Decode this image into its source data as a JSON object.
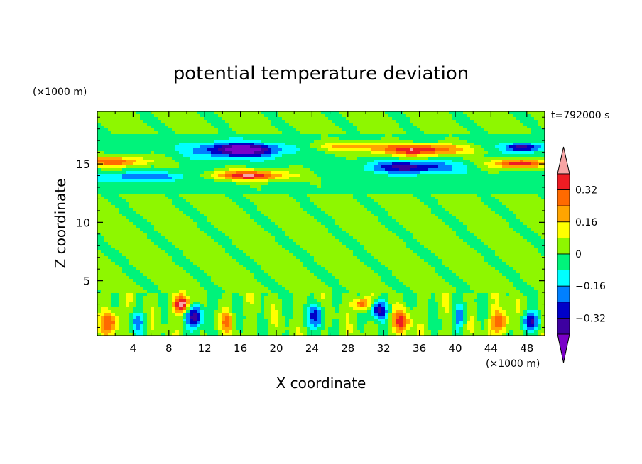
{
  "chart_data": {
    "type": "heatmap",
    "title": "potential temperature deviation",
    "xlabel": "X coordinate",
    "ylabel": "Z coordinate",
    "x_unit": "(×1000 m)",
    "y_unit": "(×1000 m)",
    "time_label": "t=792000 s",
    "xlim": [
      0,
      50
    ],
    "ylim": [
      0.3,
      19.5
    ],
    "x_ticks": [
      "4",
      "8",
      "12",
      "16",
      "20",
      "24",
      "28",
      "32",
      "36",
      "40",
      "44",
      "48"
    ],
    "y_ticks": [
      "5",
      "10",
      "15"
    ],
    "colorbar": {
      "labels": [
        "0.32",
        "0.16",
        "0",
        "−0.16",
        "−0.32"
      ],
      "levels": [
        0.4,
        0.32,
        0.24,
        0.16,
        0.08,
        0,
        -0.08,
        -0.16,
        -0.24,
        -0.32,
        -0.4
      ],
      "colors": [
        "#f7a4a4",
        "#ee1c23",
        "#ff6a00",
        "#ffa500",
        "#ffff00",
        "#8ef700",
        "#00f37b",
        "#00ffff",
        "#0080ff",
        "#0000c8",
        "#3d00a0",
        "#7a00c8"
      ]
    },
    "features": [
      {
        "x": 16,
        "z": 16.2,
        "sx": 4.5,
        "sz": 0.6,
        "v": -0.45
      },
      {
        "x": 35,
        "z": 14.7,
        "sx": 4.5,
        "sz": 0.5,
        "v": -0.33
      },
      {
        "x": 47.5,
        "z": 16.4,
        "sx": 2,
        "sz": 0.4,
        "v": -0.35
      },
      {
        "x": 5,
        "z": 13.9,
        "sx": 6,
        "sz": 0.4,
        "v": -0.2
      },
      {
        "x": 17,
        "z": 14,
        "sx": 4.5,
        "sz": 0.45,
        "v": 0.42
      },
      {
        "x": 36,
        "z": 16.2,
        "sx": 5,
        "sz": 0.5,
        "v": 0.42
      },
      {
        "x": 2,
        "z": 15.2,
        "sx": 4,
        "sz": 0.45,
        "v": 0.33
      },
      {
        "x": 47,
        "z": 15,
        "sx": 3,
        "sz": 0.4,
        "v": 0.42
      },
      {
        "x": 28,
        "z": 16.5,
        "sx": 4,
        "sz": 0.45,
        "v": 0.2
      },
      {
        "x": 9.5,
        "z": 3,
        "sx": 0.9,
        "sz": 0.7,
        "v": 0.45
      },
      {
        "x": 29.5,
        "z": 3,
        "sx": 0.9,
        "sz": 0.5,
        "v": 0.35
      },
      {
        "x": 1.5,
        "z": 1.5,
        "sx": 1,
        "sz": 1,
        "v": 0.3
      },
      {
        "x": 34,
        "z": 1.5,
        "sx": 1,
        "sz": 1,
        "v": 0.3
      },
      {
        "x": 45,
        "z": 1.5,
        "sx": 1,
        "sz": 1,
        "v": 0.3
      },
      {
        "x": 14.5,
        "z": 1.5,
        "sx": 0.8,
        "sz": 0.9,
        "v": 0.2
      },
      {
        "x": 11,
        "z": 2,
        "sx": 1,
        "sz": 1,
        "v": -0.4
      },
      {
        "x": 31.5,
        "z": 2.5,
        "sx": 1,
        "sz": 0.8,
        "v": -0.35
      },
      {
        "x": 24.5,
        "z": 2,
        "sx": 0.8,
        "sz": 1,
        "v": -0.3
      },
      {
        "x": 48.5,
        "z": 1.5,
        "sx": 1,
        "sz": 0.8,
        "v": -0.35
      },
      {
        "x": 4.5,
        "z": 1.5,
        "sx": 0.8,
        "sz": 0.9,
        "v": -0.2
      },
      {
        "x": 40.5,
        "z": 2,
        "sx": 0.6,
        "sz": 1,
        "v": -0.25
      }
    ]
  }
}
